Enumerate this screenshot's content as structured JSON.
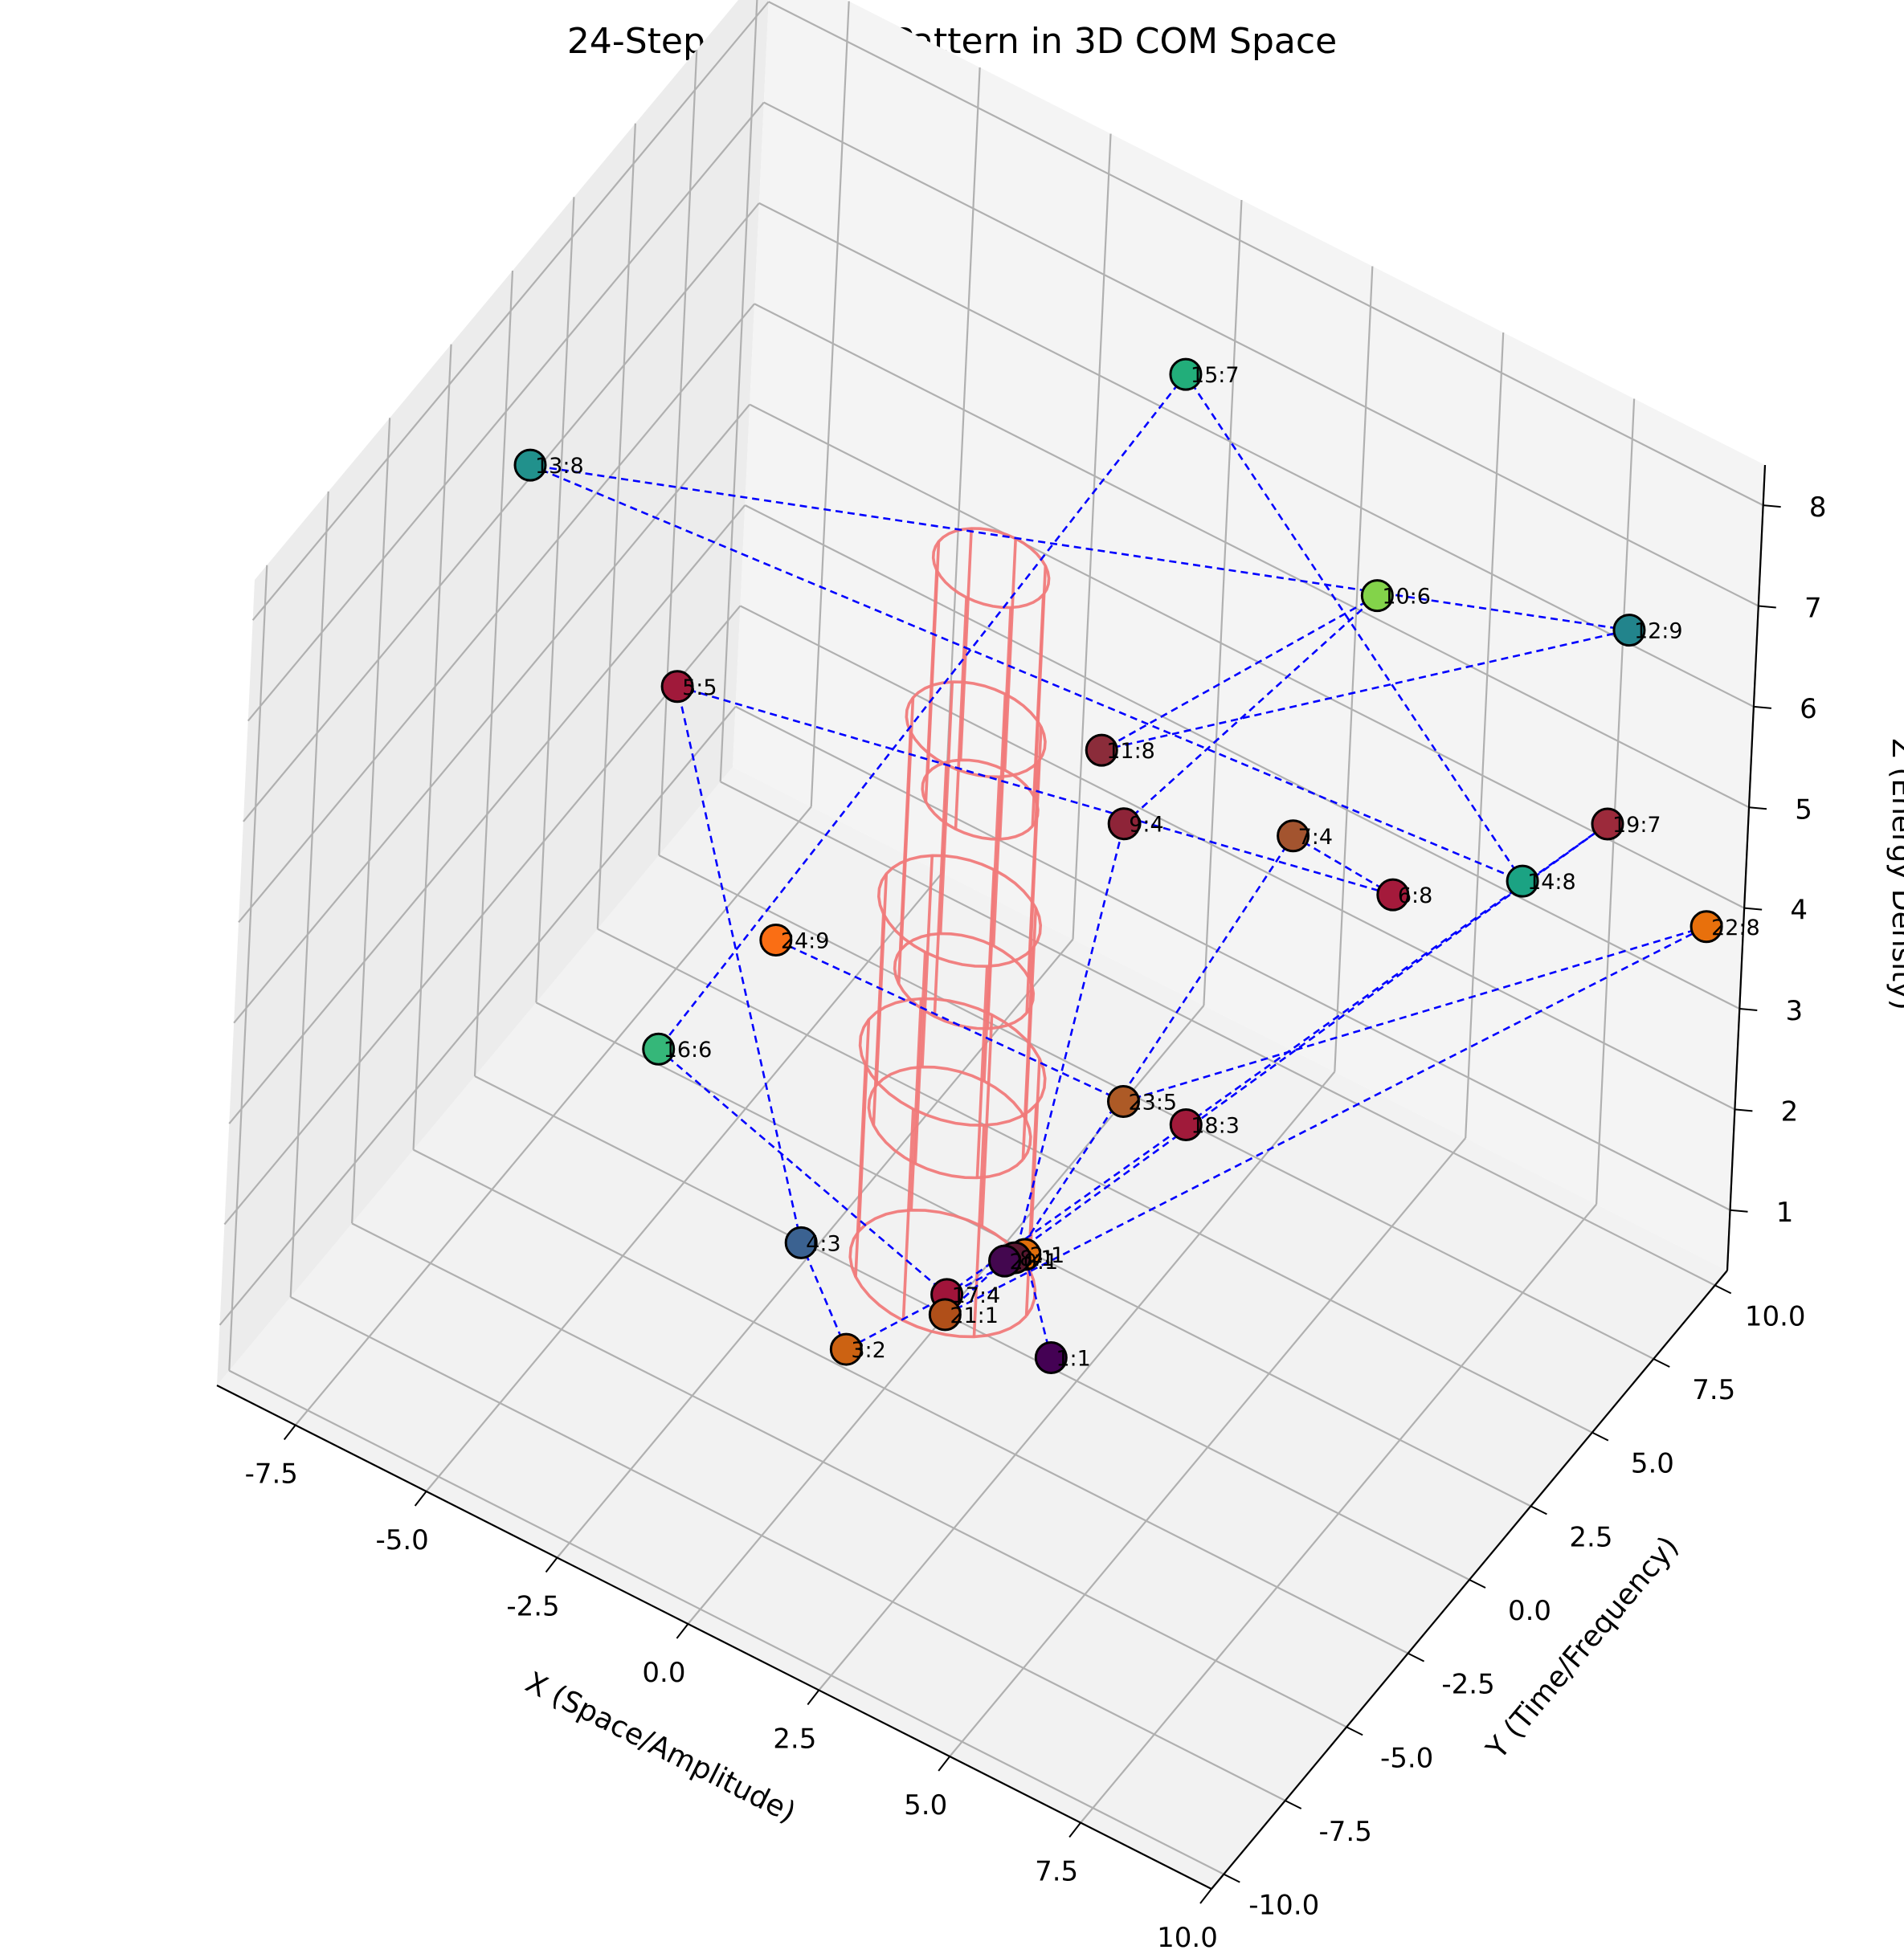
{
  "chart_data": {
    "type": "scatter",
    "title": "24-Step Fibonacci Pattern in 3D COM Space",
    "xlabel": "X (Space/Amplitude)",
    "ylabel": "Y (Time/Frequency)",
    "zlabel": "Z (Energy Density)",
    "xlim": [
      -9,
      10
    ],
    "ylim": [
      -10.5,
      10.5
    ],
    "zlim": [
      0.4,
      8.4
    ],
    "x_ticks": [
      "-7.5",
      "-5.0",
      "-2.5",
      "0.0",
      "2.5",
      "5.0",
      "7.5",
      "10.0"
    ],
    "y_ticks": [
      "-10.0",
      "-7.5",
      "-5.0",
      "-2.5",
      "0.0",
      "2.5",
      "5.0",
      "7.5",
      "10.0"
    ],
    "z_ticks": [
      "1",
      "2",
      "3",
      "4",
      "5",
      "6",
      "7",
      "8"
    ],
    "grid": true,
    "path_line_color": "#0000ff",
    "path_line_style": "dashed",
    "structure_line_color": "#f07a7a",
    "marker_edge_color": "#000000",
    "points": [
      {
        "step": 1,
        "label": "1:1",
        "x": 2.0,
        "y": 0.0,
        "z": 0.5,
        "color": "#440154"
      },
      {
        "step": 2,
        "label": "2:1",
        "x": 0.6,
        "y": 1.9,
        "z": 0.6,
        "color": "#e16f0b"
      },
      {
        "step": 3,
        "label": "3:2",
        "x": -0.1,
        "y": -4.0,
        "z": 1.2,
        "color": "#cc6212"
      },
      {
        "step": 4,
        "label": "4:3",
        "x": -1.9,
        "y": -2.0,
        "z": 1.2,
        "color": "#3b6291"
      },
      {
        "step": 5,
        "label": "5:5",
        "x": -6.6,
        "y": 2.4,
        "z": 4.2,
        "color": "#a0193a"
      },
      {
        "step": 6,
        "label": "6:8",
        "x": 4.6,
        "y": 7.8,
        "z": 3.5,
        "color": "#a41a3b"
      },
      {
        "step": 7,
        "label": "7:4",
        "x": 2.6,
        "y": 8.0,
        "z": 3.5,
        "color": "#a3542f"
      },
      {
        "step": 8,
        "label": "8:1",
        "x": 0.5,
        "y": 1.7,
        "z": 0.6,
        "color": "#5a1830"
      },
      {
        "step": 9,
        "label": "9:4",
        "x": 0.3,
        "y": 6.0,
        "z": 3.6,
        "color": "#8e2438"
      },
      {
        "step": 10,
        "label": "10:6",
        "x": 3.7,
        "y": 8.6,
        "z": 6.0,
        "color": "#83d34a"
      },
      {
        "step": 11,
        "label": "11:8",
        "x": -0.4,
        "y": 6.5,
        "z": 4.0,
        "color": "#8b2c3a"
      },
      {
        "step": 12,
        "label": "12:9",
        "x": 9.6,
        "y": 5.9,
        "z": 8.0,
        "color": "#22848c"
      },
      {
        "step": 13,
        "label": "13:8",
        "x": -8.5,
        "y": 0.0,
        "z": 6.6,
        "color": "#21918c"
      },
      {
        "step": 14,
        "label": "14:8",
        "x": 6.4,
        "y": 9.2,
        "z": 3.7,
        "color": "#1ba383"
      },
      {
        "step": 15,
        "label": "15:7",
        "x": -0.5,
        "y": 9.6,
        "z": 6.8,
        "color": "#22ae7a"
      },
      {
        "step": 16,
        "label": "16:6",
        "x": -4.6,
        "y": -2.3,
        "z": 2.5,
        "color": "#35b779"
      },
      {
        "step": 17,
        "label": "17:4",
        "x": 0.0,
        "y": 0.0,
        "z": 0.6,
        "color": "#a0143a"
      },
      {
        "step": 18,
        "label": "18:3",
        "x": 2.8,
        "y": 3.5,
        "z": 2.0,
        "color": "#a01a3a"
      },
      {
        "step": 19,
        "label": "19:7",
        "x": 8.5,
        "y": 7.9,
        "z": 5.2,
        "color": "#9c2a3b"
      },
      {
        "step": 20,
        "label": "20:1",
        "x": 0.4,
        "y": 1.5,
        "z": 0.6,
        "color": "#43074f"
      },
      {
        "step": 21,
        "label": "21:1",
        "x": 0.2,
        "y": -0.5,
        "z": 0.6,
        "color": "#b04f19"
      },
      {
        "step": 22,
        "label": "22:8",
        "x": 9.7,
        "y": 9.6,
        "z": 4.0,
        "color": "#e8700c"
      },
      {
        "step": 23,
        "label": "23:5",
        "x": 1.7,
        "y": 3.3,
        "z": 2.0,
        "color": "#ad5a26"
      },
      {
        "step": 24,
        "label": "24:9",
        "x": -3.5,
        "y": 0.0,
        "z": 3.2,
        "color": "#fa6e14"
      }
    ]
  }
}
